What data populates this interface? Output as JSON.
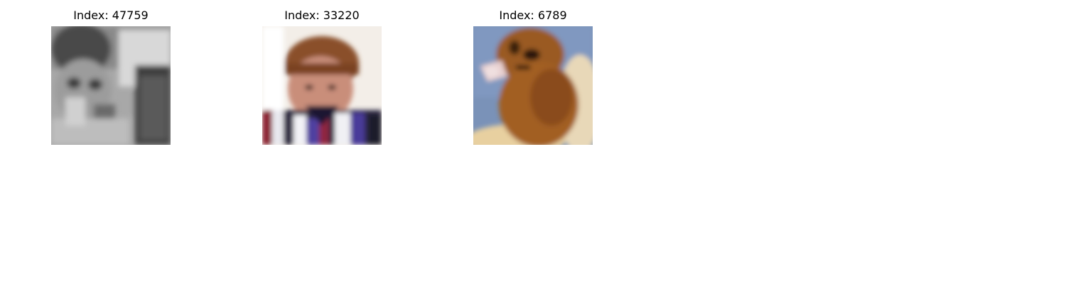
{
  "panels": [
    {
      "title": "Index: 47759",
      "image": "grayscale-photo-person-with-frame"
    },
    {
      "title": "Index: 33220",
      "image": "smiling-boy-striped-shirt"
    },
    {
      "title": "Index: 6789",
      "image": "brown-animal-blue-background"
    }
  ]
}
